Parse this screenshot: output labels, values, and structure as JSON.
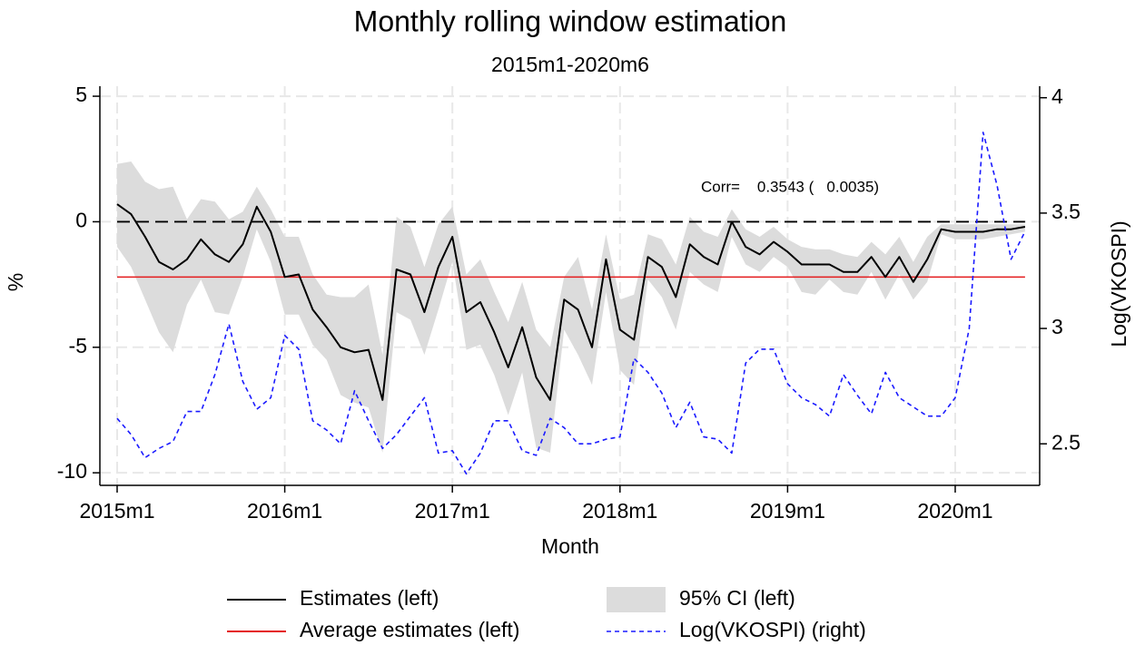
{
  "chart_data": {
    "type": "line",
    "title": "Monthly rolling window estimation",
    "subtitle": "2015m1-2020m6",
    "x_label": "Month",
    "y_label": "%",
    "y2_label": "Log(VKOSPI)",
    "annotation": "Corr=    0.3543 (   0.0035)",
    "categories": [
      "2015m1",
      null,
      null,
      null,
      null,
      null,
      null,
      null,
      null,
      null,
      null,
      null,
      "2016m1",
      null,
      null,
      null,
      null,
      null,
      null,
      null,
      null,
      null,
      null,
      null,
      "2017m1",
      null,
      null,
      null,
      null,
      null,
      null,
      null,
      null,
      null,
      null,
      null,
      "2018m1",
      null,
      null,
      null,
      null,
      null,
      null,
      null,
      null,
      null,
      null,
      null,
      "2019m1",
      null,
      null,
      null,
      null,
      null,
      null,
      null,
      null,
      null,
      null,
      null,
      "2020m1",
      null,
      null,
      null,
      null,
      null
    ],
    "ylim": [
      -10.5,
      5.4
    ],
    "yticks": [
      -10,
      -5,
      0,
      5
    ],
    "y2lim": [
      2.32,
      4.05
    ],
    "y2ticks": [
      2.5,
      3,
      3.5,
      4
    ],
    "grid": true,
    "reference_line": 0,
    "series": [
      {
        "name": "Estimates (left)",
        "color": "#000000",
        "kind": "line",
        "values": [
          0.7,
          0.3,
          -0.6,
          -1.6,
          -1.9,
          -1.5,
          -0.7,
          -1.3,
          -1.6,
          -0.9,
          0.6,
          -0.4,
          -2.2,
          -2.1,
          -3.5,
          -4.2,
          -5.0,
          -5.2,
          -5.1,
          -7.1,
          -1.9,
          -2.1,
          -3.6,
          -1.8,
          -0.6,
          -3.6,
          -3.2,
          -4.4,
          -5.8,
          -4.2,
          -6.2,
          -7.1,
          -3.1,
          -3.5,
          -5.0,
          -1.5,
          -4.3,
          -4.7,
          -1.4,
          -1.8,
          -3.0,
          -0.9,
          -1.4,
          -1.7,
          0,
          -1.0,
          -1.3,
          -0.8,
          -1.2,
          -1.7,
          -1.7,
          -1.7,
          -2.0,
          -2.0,
          -1.4,
          -2.2,
          -1.4,
          -2.4,
          -1.5,
          -0.3,
          -0.4,
          -0.4,
          -0.4,
          -0.3,
          -0.3,
          -0.2
        ]
      },
      {
        "name": "95% CI (left)",
        "color": "#dcdcdc",
        "kind": "band",
        "upper": [
          2.3,
          2.4,
          1.6,
          1.3,
          1.4,
          0.1,
          0.9,
          0.8,
          0.1,
          0.4,
          1.4,
          0.5,
          -0.6,
          -0.6,
          -2.1,
          -2.9,
          -3.0,
          -3.0,
          -2.5,
          -5.3,
          0.2,
          -0.2,
          -1.8,
          -0.1,
          0.6,
          -2.1,
          -1.5,
          -2.8,
          -4.0,
          -2.4,
          -4.3,
          -5.0,
          -2.2,
          -1.4,
          -3.5,
          -0.5,
          -3.1,
          -2.9,
          -0.5,
          -0.7,
          -1.7,
          0.2,
          -0.4,
          -0.6,
          0.5,
          -0.3,
          -0.6,
          -0.2,
          -0.7,
          -1.0,
          -1.1,
          -1.1,
          -1.3,
          -1.4,
          -0.8,
          -1.3,
          -0.6,
          -1.6,
          -0.6,
          -0.1,
          -0.1,
          -0.1,
          -0.1,
          -0.1,
          -0.1,
          -0.1
        ],
        "lower": [
          -1.0,
          -1.8,
          -3.1,
          -4.4,
          -5.2,
          -3.3,
          -2.3,
          -3.6,
          -3.7,
          -2.2,
          -0.3,
          -1.6,
          -3.7,
          -3.7,
          -4.9,
          -5.5,
          -6.9,
          -7.2,
          -7.4,
          -9.2,
          -3.6,
          -3.9,
          -5.3,
          -3.5,
          -1.6,
          -5.1,
          -4.9,
          -6.1,
          -7.7,
          -6.0,
          -9.0,
          -9.2,
          -4.3,
          -5.3,
          -6.5,
          -2.8,
          -5.9,
          -6.5,
          -2.3,
          -3.0,
          -4.3,
          -2.0,
          -2.5,
          -2.8,
          -0.6,
          -1.7,
          -2.0,
          -1.4,
          -1.8,
          -2.8,
          -2.9,
          -2.3,
          -2.8,
          -2.9,
          -2.0,
          -3.1,
          -2.1,
          -3.1,
          -2.4,
          -0.5,
          -0.7,
          -0.7,
          -0.7,
          -0.6,
          -0.5,
          -0.4
        ]
      },
      {
        "name": "Average estimates (left)",
        "color": "#e41a1c",
        "kind": "hline",
        "value": -2.2
      },
      {
        "name": "Log(VKOSPI) (right)",
        "color": "#1a1aff",
        "kind": "line",
        "dash": true,
        "axis": "y2",
        "values": [
          2.61,
          2.54,
          2.44,
          2.48,
          2.51,
          2.64,
          2.64,
          2.8,
          3.02,
          2.77,
          2.65,
          2.7,
          2.97,
          2.91,
          2.6,
          2.56,
          2.5,
          2.73,
          2.6,
          2.48,
          2.54,
          2.62,
          2.7,
          2.46,
          2.47,
          2.37,
          2.46,
          2.6,
          2.6,
          2.47,
          2.45,
          2.61,
          2.57,
          2.5,
          2.5,
          2.52,
          2.53,
          2.87,
          2.81,
          2.72,
          2.57,
          2.68,
          2.53,
          2.52,
          2.46,
          2.85,
          2.91,
          2.91,
          2.76,
          2.7,
          2.67,
          2.62,
          2.8,
          2.71,
          2.63,
          2.81,
          2.7,
          2.66,
          2.62,
          2.62,
          2.7,
          3.0,
          3.85,
          3.62,
          3.3,
          3.42
        ]
      }
    ]
  }
}
